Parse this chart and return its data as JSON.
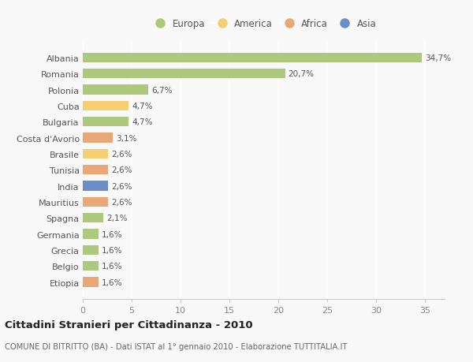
{
  "countries": [
    "Albania",
    "Romania",
    "Polonia",
    "Cuba",
    "Bulgaria",
    "Costa d'Avorio",
    "Brasile",
    "Tunisia",
    "India",
    "Mauritius",
    "Spagna",
    "Germania",
    "Grecia",
    "Belgio",
    "Etiopia"
  ],
  "values": [
    34.7,
    20.7,
    6.7,
    4.7,
    4.7,
    3.1,
    2.6,
    2.6,
    2.6,
    2.6,
    2.1,
    1.6,
    1.6,
    1.6,
    1.6
  ],
  "labels": [
    "34,7%",
    "20,7%",
    "6,7%",
    "4,7%",
    "4,7%",
    "3,1%",
    "2,6%",
    "2,6%",
    "2,6%",
    "2,6%",
    "2,1%",
    "1,6%",
    "1,6%",
    "1,6%",
    "1,6%"
  ],
  "continents": [
    "Europa",
    "Europa",
    "Europa",
    "America",
    "Europa",
    "Africa",
    "America",
    "Africa",
    "Asia",
    "Africa",
    "Europa",
    "Europa",
    "Europa",
    "Europa",
    "Africa"
  ],
  "colors": {
    "Europa": "#adc97e",
    "America": "#f5cf72",
    "Africa": "#e8a878",
    "Asia": "#6b8ec9"
  },
  "title": "Cittadini Stranieri per Cittadinanza - 2010",
  "subtitle": "COMUNE DI BITRITTO (BA) - Dati ISTAT al 1° gennaio 2010 - Elaborazione TUTTITALIA.IT",
  "xlim": [
    0,
    37
  ],
  "xticks": [
    0,
    5,
    10,
    15,
    20,
    25,
    30,
    35
  ],
  "background_color": "#f9f9f9",
  "grid_color": "#ffffff",
  "bar_height": 0.6
}
